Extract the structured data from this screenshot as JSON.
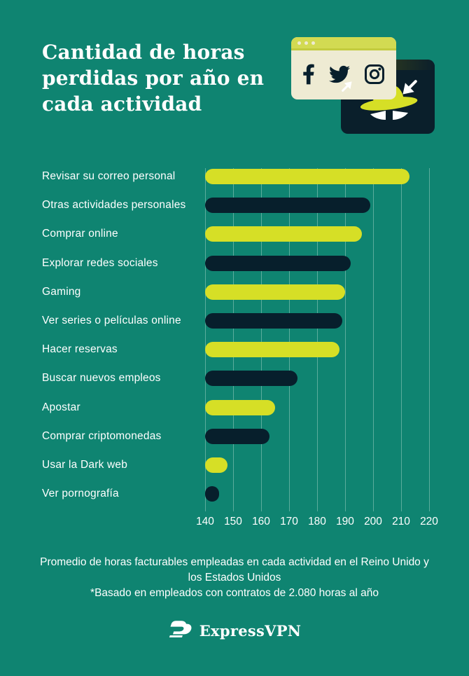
{
  "page": {
    "background": "#0F8471",
    "accent_lime": "#D6DF26",
    "accent_navy": "#071F2C"
  },
  "header": {
    "title_line1": "Cantidad de horas",
    "title_line2": "perdidas por año en",
    "title_line3": "cada actividad"
  },
  "illustration": {
    "social_icons": [
      "facebook-icon",
      "twitter-icon",
      "instagram-icon"
    ],
    "window_cream_color": "#EEEBD3",
    "window_cream_bar_color": "#D2DA52",
    "window_dark_color": "#0A1F2B",
    "spy_hat_color": "#D6DF26"
  },
  "chart_data": {
    "type": "bar",
    "orientation": "horizontal",
    "title": "Cantidad de horas perdidas por año en cada actividad",
    "categories": [
      "Revisar su correo personal",
      "Otras actividades personales",
      "Comprar online",
      "Explorar redes sociales",
      "Gaming",
      "Ver series o películas online",
      "Hacer reservas",
      "Buscar nuevos empleos",
      "Apostar",
      "Comprar criptomonedas",
      "Usar la Dark web",
      "Ver pornografía"
    ],
    "values": [
      213,
      199,
      196,
      192,
      190,
      189,
      188,
      173,
      165,
      163,
      148,
      145
    ],
    "unit": "horas",
    "x_ticks": [
      140,
      150,
      160,
      170,
      180,
      190,
      200,
      210,
      220
    ],
    "xlim": [
      140,
      220
    ],
    "bar_colors_alternating": [
      "#D6DF26",
      "#071F2C"
    ],
    "grid": "vertical-on",
    "legend": "none"
  },
  "footer": {
    "caption": "Promedio de horas facturables empleadas en cada actividad en el Reino Unido y los Estados Unidos",
    "note": "*Basado en empleados con contratos de 2.080 horas al año",
    "brand": "ExpressVPN"
  }
}
